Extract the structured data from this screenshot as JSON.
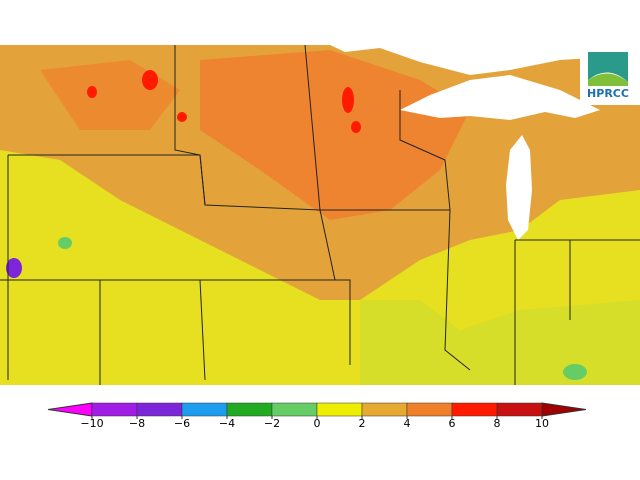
{
  "logo": {
    "text": "HPRCC"
  },
  "colorbar": {
    "ticks": [
      {
        "value": -10,
        "label": "−10"
      },
      {
        "value": -8,
        "label": "−8"
      },
      {
        "value": -6,
        "label": "−6"
      },
      {
        "value": -4,
        "label": "−4"
      },
      {
        "value": -2,
        "label": "−2"
      },
      0,
      2,
      4,
      6,
      8,
      10
    ],
    "colors": [
      "#ff00ff",
      "#a01ee6",
      "#7d26d9",
      "#1e9cf0",
      "#22aa22",
      "#66cc66",
      "#eeee00",
      "#e6aa33",
      "#f07f2a",
      "#ff1a00",
      "#c81010",
      "#a00000"
    ]
  }
}
